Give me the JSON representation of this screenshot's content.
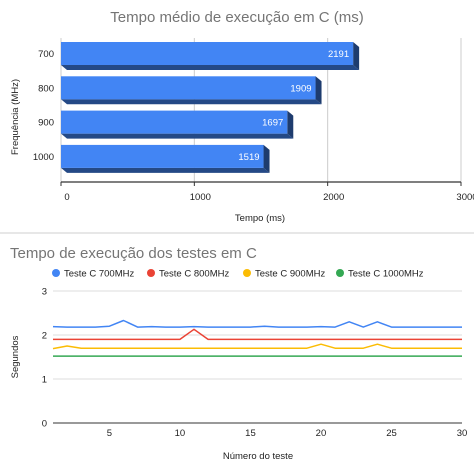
{
  "chart_data": [
    {
      "type": "bar",
      "orientation": "horizontal",
      "title": "Tempo médio de execução em C (ms)",
      "xlabel": "Tempo (ms)",
      "ylabel": "Frequência (MHz)",
      "categories": [
        "700",
        "800",
        "900",
        "1000"
      ],
      "values": [
        2191,
        1909,
        1697,
        1519
      ],
      "value_labels": [
        "2191",
        "1909",
        "1697",
        "1519"
      ],
      "xlim": [
        0,
        3000
      ],
      "xticks": [
        "0",
        "1000",
        "2000",
        "3000"
      ],
      "color": "#4285f4",
      "grid": true
    },
    {
      "type": "line",
      "title": "Tempo de execução dos testes em C",
      "xlabel": "Número do teste",
      "ylabel": "Segundos",
      "legend_position": "top",
      "xlim": [
        1,
        30
      ],
      "ylim": [
        0,
        3
      ],
      "xticks": [
        "5",
        "10",
        "15",
        "20",
        "25",
        "30"
      ],
      "yticks": [
        "0",
        "1",
        "2",
        "3"
      ],
      "x": [
        1,
        2,
        3,
        4,
        5,
        6,
        7,
        8,
        9,
        10,
        11,
        12,
        13,
        14,
        15,
        16,
        17,
        18,
        19,
        20,
        21,
        22,
        23,
        24,
        25,
        26,
        27,
        28,
        29,
        30
      ],
      "series": [
        {
          "name": "Teste C 700MHz",
          "color": "#4285f4",
          "values": [
            2.19,
            2.18,
            2.18,
            2.18,
            2.2,
            2.33,
            2.18,
            2.19,
            2.18,
            2.18,
            2.19,
            2.18,
            2.18,
            2.18,
            2.18,
            2.2,
            2.18,
            2.18,
            2.18,
            2.19,
            2.18,
            2.3,
            2.18,
            2.3,
            2.18,
            2.18,
            2.18,
            2.18,
            2.18,
            2.18
          ]
        },
        {
          "name": "Teste C 800MHz",
          "color": "#ea4335",
          "values": [
            1.9,
            1.9,
            1.9,
            1.9,
            1.9,
            1.9,
            1.9,
            1.9,
            1.9,
            1.9,
            2.13,
            1.9,
            1.9,
            1.9,
            1.9,
            1.9,
            1.9,
            1.9,
            1.9,
            1.9,
            1.9,
            1.9,
            1.9,
            1.9,
            1.9,
            1.9,
            1.9,
            1.9,
            1.9,
            1.9
          ]
        },
        {
          "name": "Teste C 900MHz",
          "color": "#fbbc04",
          "values": [
            1.69,
            1.75,
            1.7,
            1.7,
            1.7,
            1.7,
            1.7,
            1.7,
            1.7,
            1.7,
            1.7,
            1.7,
            1.7,
            1.7,
            1.7,
            1.7,
            1.7,
            1.7,
            1.7,
            1.79,
            1.7,
            1.7,
            1.7,
            1.79,
            1.7,
            1.7,
            1.7,
            1.7,
            1.7,
            1.7
          ]
        },
        {
          "name": "Teste C 1000MHz",
          "color": "#34a853",
          "values": [
            1.52,
            1.52,
            1.52,
            1.52,
            1.52,
            1.52,
            1.52,
            1.52,
            1.52,
            1.52,
            1.52,
            1.52,
            1.52,
            1.52,
            1.52,
            1.52,
            1.52,
            1.52,
            1.52,
            1.52,
            1.52,
            1.52,
            1.52,
            1.52,
            1.52,
            1.52,
            1.52,
            1.52,
            1.52,
            1.52
          ]
        }
      ]
    }
  ]
}
